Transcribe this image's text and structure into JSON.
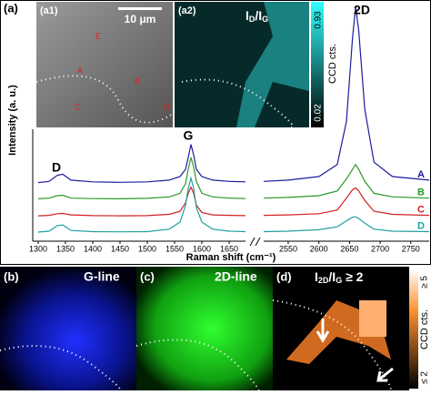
{
  "chart_data": {
    "type": "line",
    "panel": "(a)",
    "xlabel": "Raman shift (cm⁻¹)",
    "ylabel": "Intensity (a. u.)",
    "xlim": [
      1290,
      2780
    ],
    "x_break": [
      1680,
      2510
    ],
    "ylim": [
      0,
      100
    ],
    "xticks": [
      1300,
      1350,
      1400,
      1450,
      1500,
      1550,
      1600,
      1650,
      2550,
      2600,
      2650,
      2700,
      2750
    ],
    "peak_labels": [
      "D",
      "G",
      "2D"
    ],
    "x": [
      1300,
      1320,
      1335,
      1345,
      1360,
      1400,
      1450,
      1500,
      1540,
      1560,
      1570,
      1575,
      1580,
      1585,
      1590,
      1600,
      1620,
      1650,
      1680,
      2510,
      2550,
      2600,
      2630,
      2645,
      2655,
      2660,
      2665,
      2675,
      2690,
      2720,
      2780
    ],
    "series": [
      {
        "name": "A",
        "color": "#1c1c9e",
        "values": [
          24.5,
          25,
          27.5,
          28,
          25.5,
          24.8,
          24.6,
          24.8,
          25.5,
          27,
          30,
          35,
          40.4,
          36,
          30,
          27,
          25.5,
          25,
          24.8,
          25,
          25.5,
          27,
          32,
          50,
          85,
          98,
          88,
          55,
          33,
          27,
          25.5
        ]
      },
      {
        "name": "B",
        "color": "#2a9a2a",
        "values": [
          17.7,
          18,
          19,
          19.2,
          18,
          17.8,
          17.7,
          17.9,
          18.5,
          20,
          24,
          30,
          35,
          31,
          25,
          20,
          18.5,
          18,
          17.8,
          18,
          18.3,
          19,
          21,
          26,
          30,
          32,
          30,
          25,
          20,
          18.5,
          18
        ]
      },
      {
        "name": "C",
        "color": "#d02020",
        "values": [
          10.6,
          10.8,
          11.5,
          11.6,
          11,
          10.7,
          10.6,
          10.7,
          11.2,
          12.5,
          16,
          20,
          22.6,
          20,
          15,
          12,
          11,
          10.8,
          10.7,
          10.8,
          11,
          11.5,
          13,
          18,
          21.5,
          22.3,
          21,
          17,
          12.5,
          11.2,
          10.8
        ]
      },
      {
        "name": "D",
        "color": "#20a0a0",
        "values": [
          3.8,
          4.2,
          6.5,
          6.8,
          4.5,
          4,
          3.9,
          4,
          5,
          8,
          15,
          22,
          26.4,
          22,
          14,
          8,
          5,
          4.2,
          4,
          4,
          4.2,
          4.8,
          6,
          8.5,
          10,
          10.2,
          9.5,
          7.5,
          5,
          4.2,
          4
        ]
      }
    ]
  },
  "insets": {
    "a1": {
      "label": "(a1)",
      "scale_bar": "10 μm",
      "points": [
        "E",
        "A",
        "B",
        "C",
        "D"
      ]
    },
    "a2": {
      "label": "(a2)",
      "ratio": [
        "I",
        "D",
        "/I",
        "G"
      ],
      "colorbar_max": "0.93",
      "colorbar_min": "0.02",
      "colorbar_label": "CCD cts."
    }
  },
  "panels": {
    "b": {
      "label": "(b)",
      "title": "G-line"
    },
    "c": {
      "label": "(c)",
      "title": "2D-line"
    },
    "d": {
      "label": "(d)",
      "ratio": [
        "I",
        "2D",
        "/I",
        "G",
        " ≥ 2"
      ],
      "colorbar_max": "≥ 5",
      "colorbar_min": "≤ 2",
      "colorbar_label": "CCD cts."
    }
  }
}
